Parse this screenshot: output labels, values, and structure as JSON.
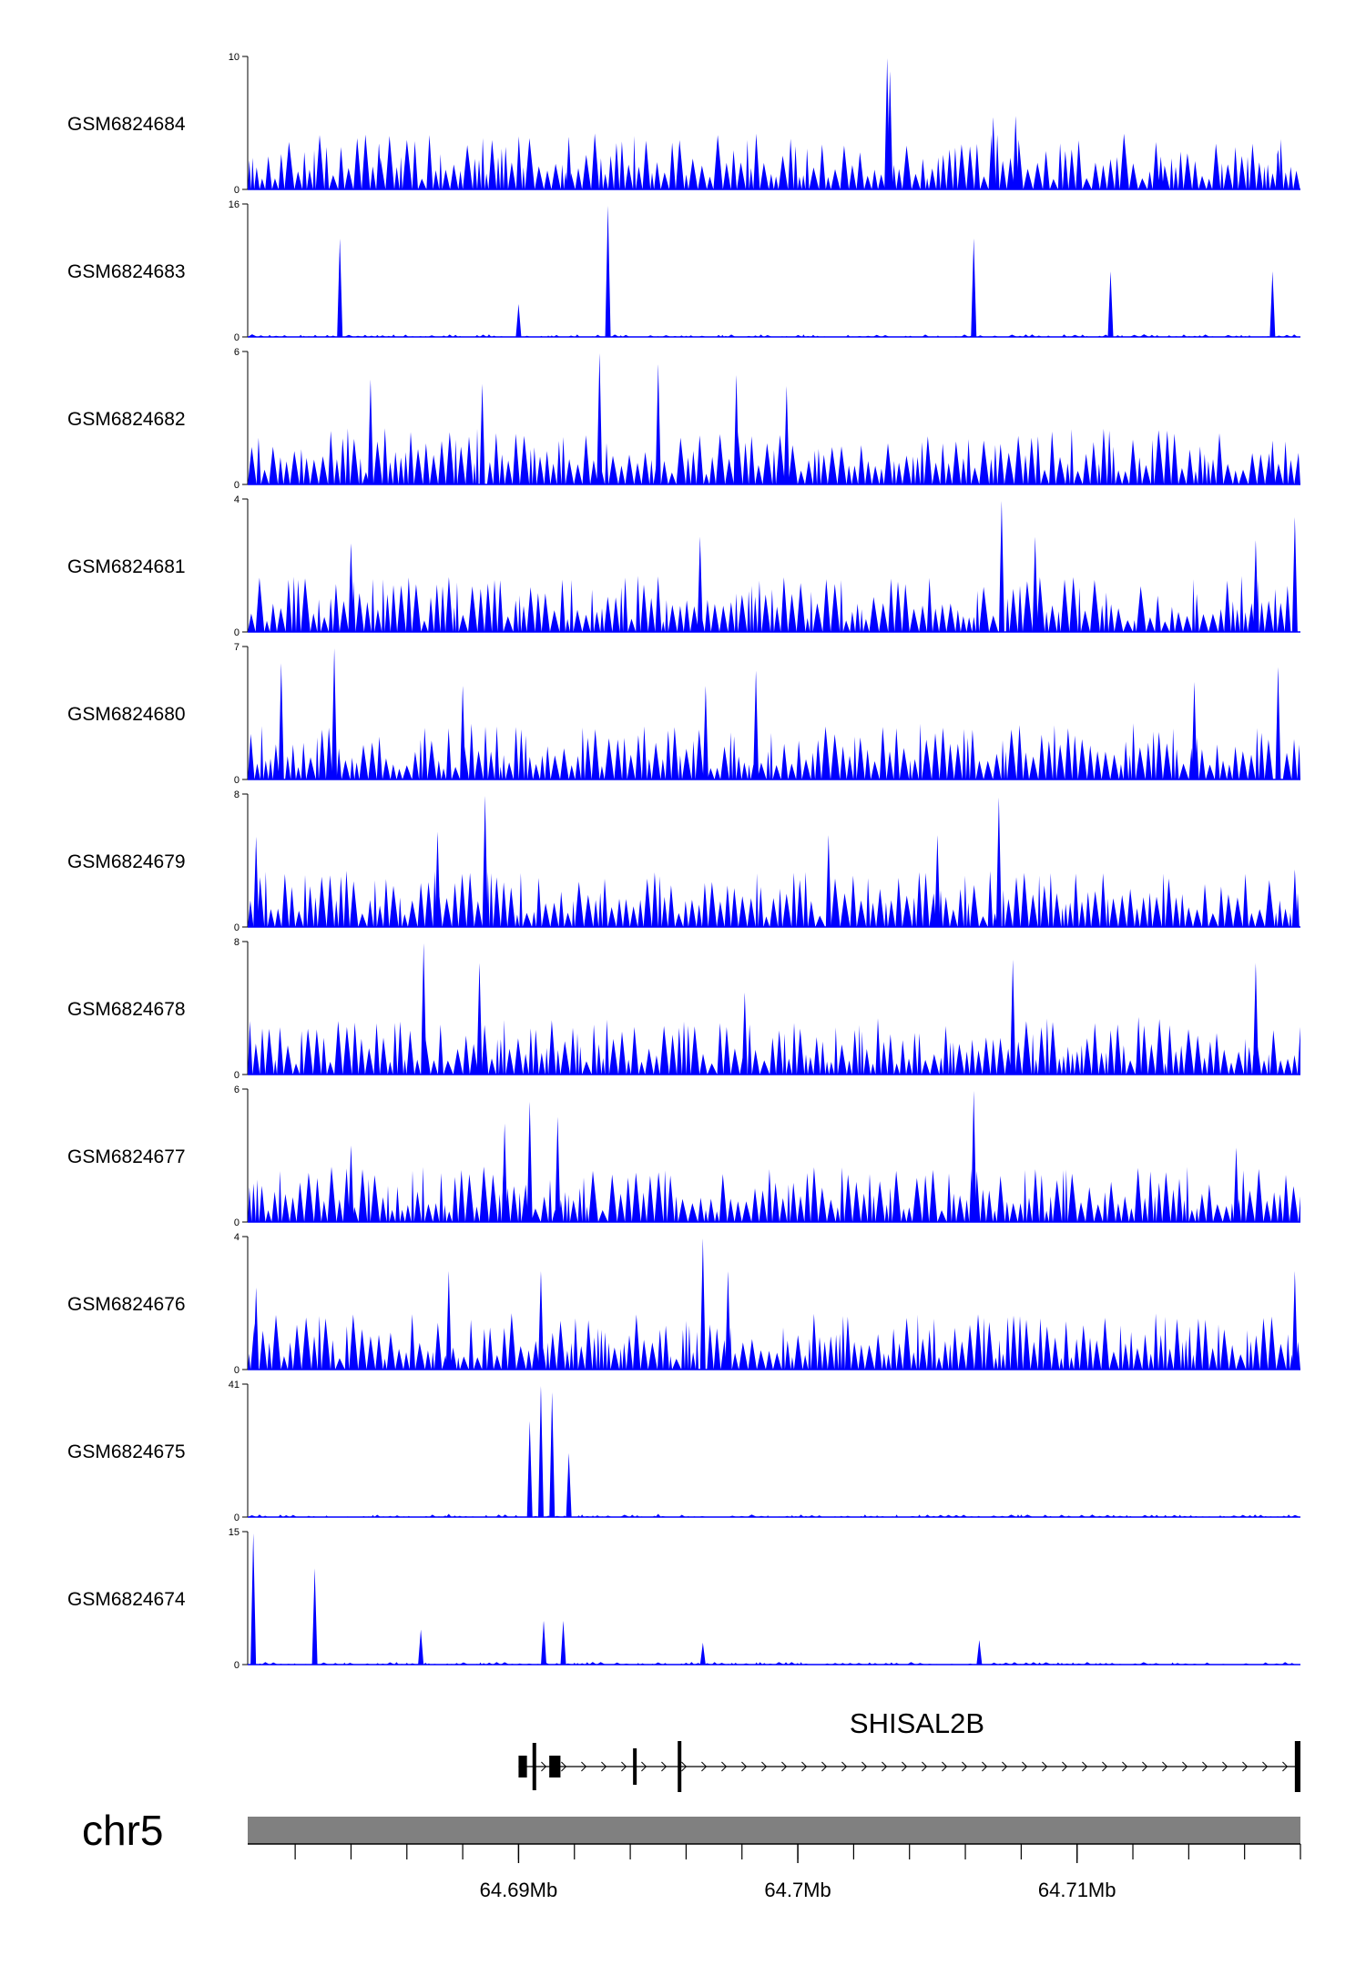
{
  "chart_data": {
    "type": "area",
    "title": "",
    "chromosome": "chr5",
    "region_mb": [
      64.6803,
      64.718
    ],
    "tracks": [
      {
        "name": "GSM6824684",
        "ymax": 10,
        "ymin": 0,
        "peaks": [
          [
            64.7032,
            10
          ],
          [
            64.7033,
            9
          ],
          [
            64.6918,
            4
          ],
          [
            64.685,
            3.5
          ],
          [
            64.707,
            5.5
          ],
          [
            64.7078,
            5.6
          ],
          [
            64.713,
            2.5
          ],
          [
            64.7172,
            3
          ]
        ]
      },
      {
        "name": "GSM6824683",
        "ymax": 16,
        "ymin": 0,
        "peaks": [
          [
            64.6932,
            16
          ],
          [
            64.6836,
            12
          ],
          [
            64.7063,
            12
          ],
          [
            64.7112,
            8
          ],
          [
            64.717,
            8
          ],
          [
            64.69,
            4
          ]
        ]
      },
      {
        "name": "GSM6824682",
        "ymax": 6,
        "ymin": 0,
        "peaks": [
          [
            64.6929,
            6
          ],
          [
            64.695,
            5.5
          ],
          [
            64.6978,
            5
          ],
          [
            64.6887,
            4.6
          ],
          [
            64.6847,
            4.8
          ],
          [
            64.6996,
            4.5
          ],
          [
            64.717,
            2
          ]
        ]
      },
      {
        "name": "GSM6824681",
        "ymax": 4,
        "ymin": 0,
        "peaks": [
          [
            64.7073,
            4
          ],
          [
            64.6965,
            2.9
          ],
          [
            64.7178,
            3.5
          ],
          [
            64.7164,
            2.8
          ],
          [
            64.684,
            2.7
          ],
          [
            64.7085,
            2.9
          ]
        ]
      },
      {
        "name": "GSM6824680",
        "ymax": 7,
        "ymin": 0,
        "peaks": [
          [
            64.6834,
            7
          ],
          [
            64.6815,
            6.2
          ],
          [
            64.7172,
            6
          ],
          [
            64.7142,
            5.2
          ],
          [
            64.6985,
            5.8
          ],
          [
            64.6967,
            5
          ],
          [
            64.688,
            5
          ]
        ]
      },
      {
        "name": "GSM6824679",
        "ymax": 8,
        "ymin": 0,
        "peaks": [
          [
            64.6888,
            8
          ],
          [
            64.7072,
            7.9
          ],
          [
            64.6871,
            5.8
          ],
          [
            64.7011,
            5.6
          ],
          [
            64.705,
            5.6
          ],
          [
            64.6806,
            5.5
          ],
          [
            64.7178,
            3.5
          ]
        ]
      },
      {
        "name": "GSM6824678",
        "ymax": 8,
        "ymin": 0,
        "peaks": [
          [
            64.6866,
            8
          ],
          [
            64.7077,
            7
          ],
          [
            64.6886,
            6.8
          ],
          [
            64.7164,
            6.8
          ],
          [
            64.6981,
            5
          ],
          [
            64.7122,
            3.5
          ]
        ]
      },
      {
        "name": "GSM6824677",
        "ymax": 6,
        "ymin": 0,
        "peaks": [
          [
            64.7063,
            6
          ],
          [
            64.6904,
            5.5
          ],
          [
            64.6914,
            4.8
          ],
          [
            64.684,
            3.5
          ],
          [
            64.6895,
            4.5
          ],
          [
            64.7157,
            3.4
          ]
        ]
      },
      {
        "name": "GSM6824676",
        "ymax": 4,
        "ymin": 0,
        "peaks": [
          [
            64.6966,
            4
          ],
          [
            64.6875,
            3
          ],
          [
            64.6908,
            3
          ],
          [
            64.6975,
            3
          ],
          [
            64.7178,
            3
          ],
          [
            64.6806,
            2.5
          ]
        ]
      },
      {
        "name": "GSM6824675",
        "ymax": 41,
        "ymin": 0,
        "peaks": [
          [
            64.6908,
            41
          ],
          [
            64.6912,
            39
          ],
          [
            64.6904,
            30
          ],
          [
            64.6918,
            20
          ],
          [
            64.6875,
            1
          ],
          [
            64.695,
            1
          ]
        ]
      },
      {
        "name": "GSM6824674",
        "ymax": 15,
        "ymin": 0,
        "peaks": [
          [
            64.6805,
            15
          ],
          [
            64.6827,
            11
          ],
          [
            64.6909,
            5
          ],
          [
            64.6916,
            5
          ],
          [
            64.6865,
            4
          ],
          [
            64.7065,
            2.8
          ],
          [
            64.6966,
            2.5
          ]
        ]
      }
    ],
    "gene": {
      "name": "SHISAL2B",
      "start_mb": 64.69,
      "end_mb": 64.718,
      "exons_mb": [
        [
          64.69,
          64.6903
        ],
        [
          64.6905,
          64.6906
        ],
        [
          64.6911,
          64.6915
        ],
        [
          64.6941,
          64.6942
        ],
        [
          64.6957,
          64.6958
        ],
        [
          64.7178,
          64.718
        ]
      ]
    },
    "x_axis": {
      "ticks_mb": [
        64.69,
        64.7,
        64.71
      ],
      "tick_labels": [
        "64.69Mb",
        "64.7Mb",
        "64.71Mb"
      ],
      "minor_tick_step_mb": 0.002
    }
  },
  "colors": {
    "signal": "#0000ff",
    "ideogram": "#808080",
    "gene": "#000000",
    "axis": "#000000"
  }
}
